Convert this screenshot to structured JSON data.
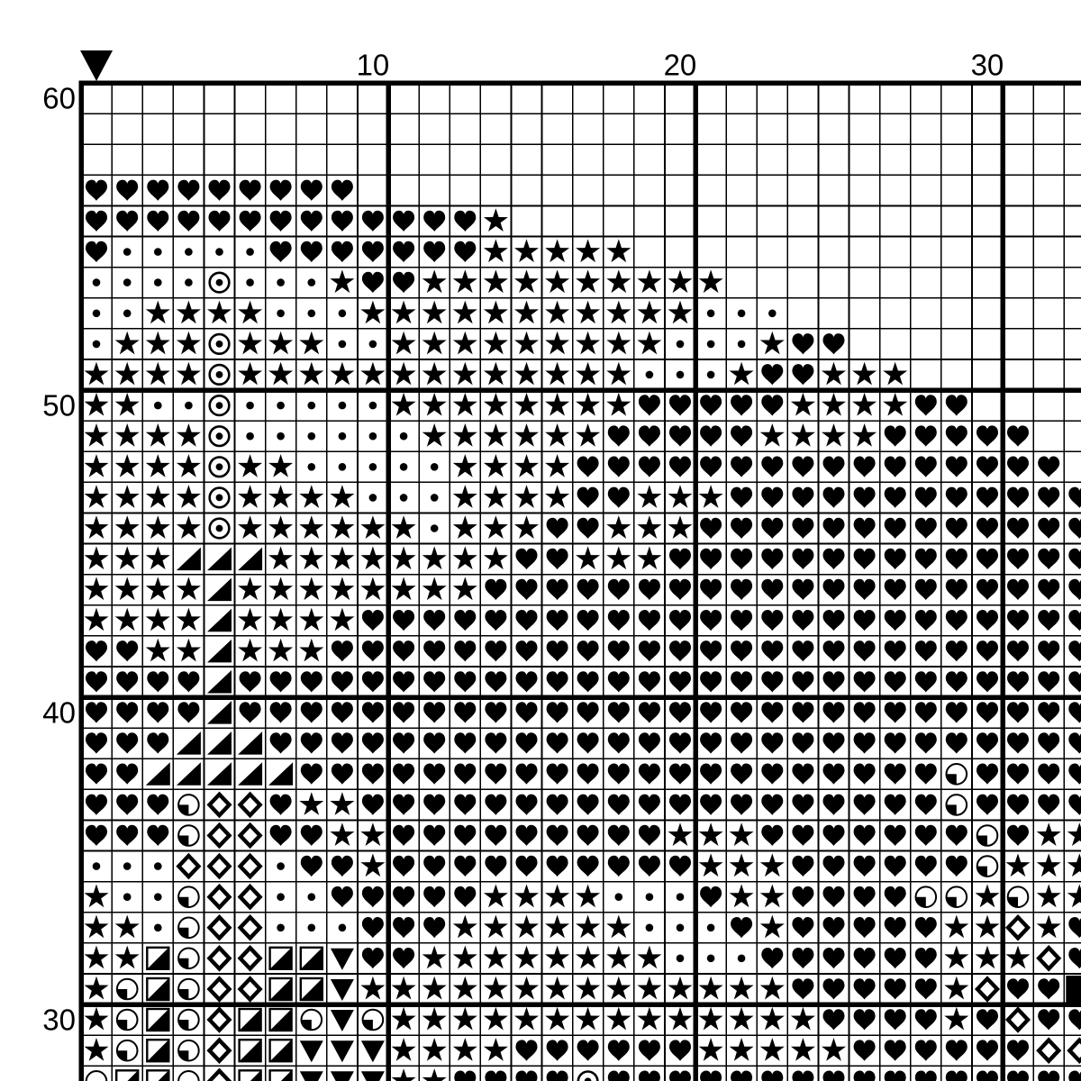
{
  "pattern": {
    "title": "cross-stitch-pattern-grid",
    "colors": {
      "ink": "#000000",
      "paper": "#ffffff"
    },
    "col_labels": [
      {
        "text": "10",
        "col": 10
      },
      {
        "text": "20",
        "col": 20
      },
      {
        "text": "30",
        "col": 30
      }
    ],
    "row_labels": [
      {
        "text": "60",
        "row_index": 0
      },
      {
        "text": "50",
        "row_index": 10
      },
      {
        "text": "40",
        "row_index": 20
      },
      {
        "text": "30",
        "row_index": 30
      }
    ],
    "symbols": {
      " ": "empty",
      ".": "dot",
      "*": "star",
      "H": "heart",
      "O": "circled-dot",
      "T": "half-triangle-lower-right",
      "Q": "quarter-circle-lower-left",
      "D": "diamond-outline",
      "S": "half-square-lower-right",
      "V": "down-triangle",
      "F": "solid-square"
    },
    "grid": {
      "visible_cols": 33,
      "rows": [
        {
          "num": 60,
          "cells": "                                 "
        },
        {
          "num": 59,
          "cells": "                                 "
        },
        {
          "num": 58,
          "cells": "                                 "
        },
        {
          "num": 57,
          "cells": "HHHHHHHHH                        "
        },
        {
          "num": 56,
          "cells": "HHHHHHHHHHHHH*                   "
        },
        {
          "num": 55,
          "cells": "H.....HHHHHHH*****               "
        },
        {
          "num": 54,
          "cells": "....O...*HH**********            "
        },
        {
          "num": 53,
          "cells": "..****...***********...          "
        },
        {
          "num": 52,
          "cells": ".***O***..*********...*HH        "
        },
        {
          "num": 51,
          "cells": "****O*************...*HH***      "
        },
        {
          "num": 50,
          "cells": "**..O.....********HHHHH****HH    "
        },
        {
          "num": 49,
          "cells": "****O......******HHHHH****HHHHH  "
        },
        {
          "num": 48,
          "cells": "****O**.....****HHHHHHHHHHHHHHHH "
        },
        {
          "num": 47,
          "cells": "****O****...****HH***HHHHHHHHHHHH"
        },
        {
          "num": 46,
          "cells": "****O******.***HH***HHHHHHHHHHHHH"
        },
        {
          "num": 45,
          "cells": "***TTT********HH***HHHHHHHHHHHHHH"
        },
        {
          "num": 44,
          "cells": "****T********HHHHHHHHHHHHHHHHHHHH"
        },
        {
          "num": 43,
          "cells": "****T****HHHHHHHHHHHHHHHHHHHHHHHH"
        },
        {
          "num": 42,
          "cells": "HH**T***HHHHHHHHHHHHHHHHHHHHHHHHH"
        },
        {
          "num": 41,
          "cells": "HHHHTHHHHHHHHHHHHHHHHHHHHHHHHHHHH"
        },
        {
          "num": 40,
          "cells": "HHHHTHHHHHHHHHHHHHHHHHHHHHHHHHHHH"
        },
        {
          "num": 39,
          "cells": "HHHTTTHHHHHHHHHHHHHHHHHHHHHHHHHHH"
        },
        {
          "num": 38,
          "cells": "HHTTTTTHHHHHHHHHHHHHHHHHHHHHQHHHH"
        },
        {
          "num": 37,
          "cells": "HHHQDDH**HHHHHHHHHHHHHHHHHHHQHHHH"
        },
        {
          "num": 36,
          "cells": "HHHQDDHH**HHHHHHHHH***HHHHHHHQH**"
        },
        {
          "num": 35,
          "cells": "...DDD.HH*HHHHHHHHHH***HHHHHHQ***"
        },
        {
          "num": 34,
          "cells": "*..QDD..HHHHH****...H**HHHHQQ*Q**"
        },
        {
          "num": 33,
          "cells": "**.QDD...HHH******...H*HHHHH**D*H"
        },
        {
          "num": 32,
          "cells": "**SQDDSSVHH********...HHHHHH***DH"
        },
        {
          "num": 31,
          "cells": "*QSQDDSSV**************HHHHH*DHHF"
        },
        {
          "num": 30,
          "cells": "*QSQDSSQVQ**************HHHH*HDHH"
        },
        {
          "num": 29,
          "cells": "*QSQDSSVVV****HHHHHH*****HHHHHHDD"
        },
        {
          "num": 28,
          "cells": "QSSQDSSVVV**HHHHOHHHHHHHHHHHHHHHH"
        }
      ]
    }
  }
}
